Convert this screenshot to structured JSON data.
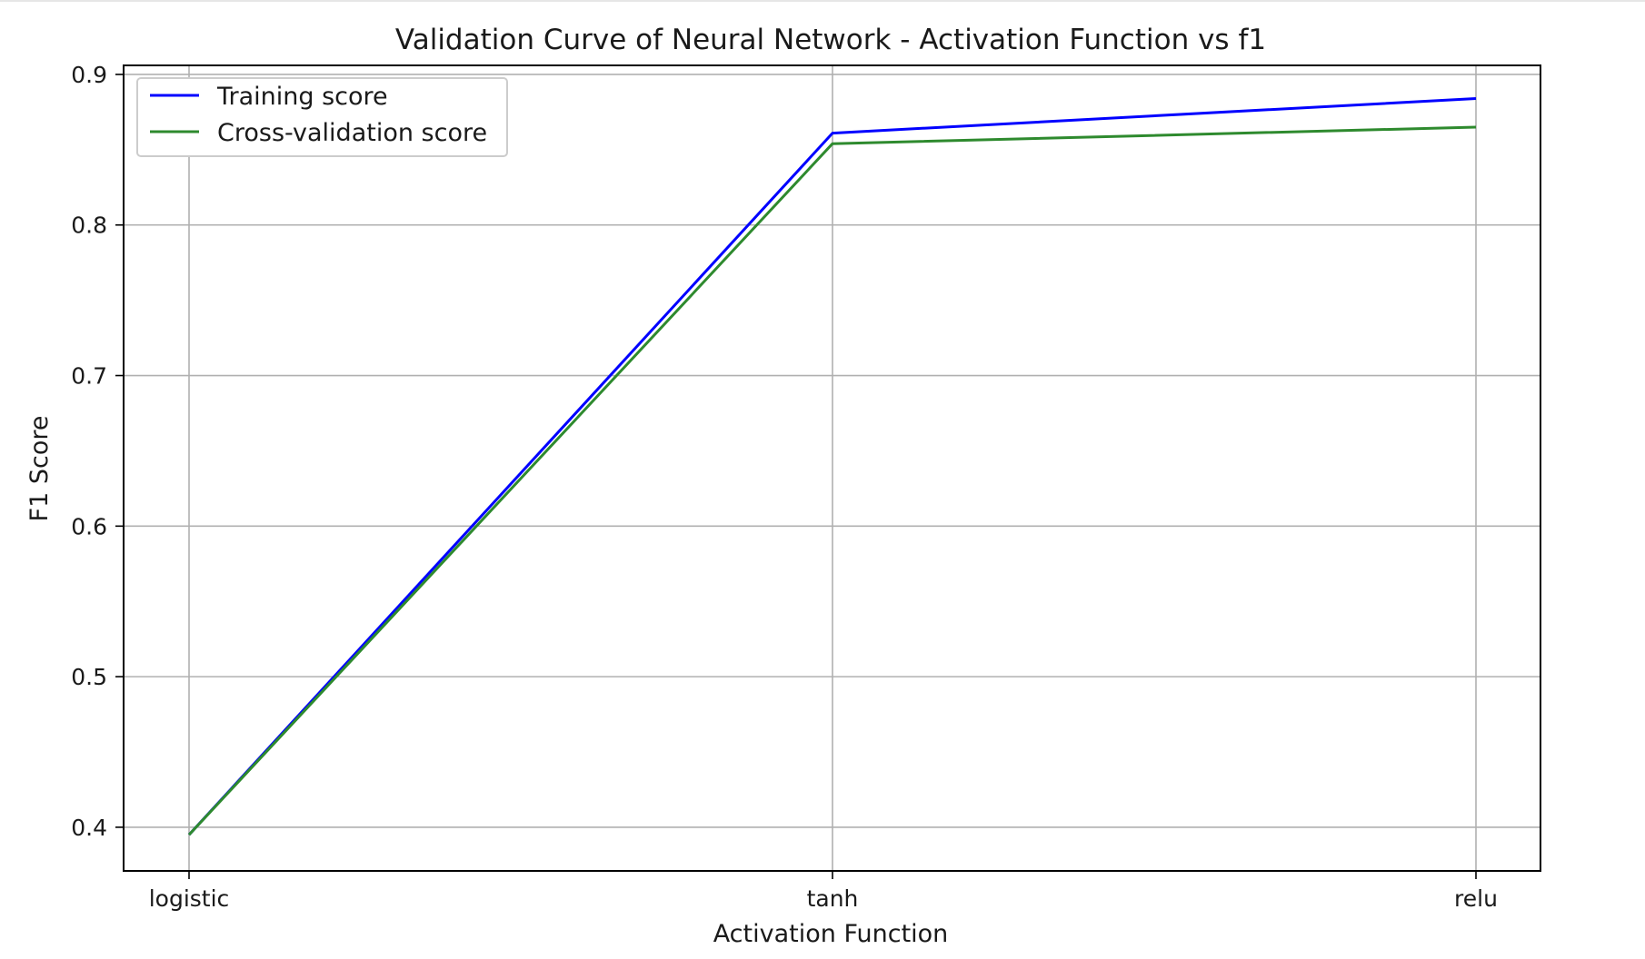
{
  "chart_data": {
    "type": "line",
    "title": "Validation Curve of Neural Network - Activation Function vs f1",
    "xlabel": "Activation Function",
    "ylabel": "F1 Score",
    "categories": [
      "logistic",
      "tanh",
      "relu"
    ],
    "ylim": [
      0.371,
      0.906
    ],
    "yticks": [
      0.4,
      0.5,
      0.6,
      0.7,
      0.8,
      0.9
    ],
    "ytick_labels": [
      "0.4",
      "0.5",
      "0.6",
      "0.7",
      "0.8",
      "0.9"
    ],
    "grid": true,
    "legend_position": "top-left",
    "series": [
      {
        "name": "Training score",
        "color": "#0000ff",
        "values": [
          0.395,
          0.861,
          0.884
        ]
      },
      {
        "name": "Cross-validation score",
        "color": "#2e8a2e",
        "values": [
          0.395,
          0.854,
          0.865
        ]
      }
    ]
  }
}
